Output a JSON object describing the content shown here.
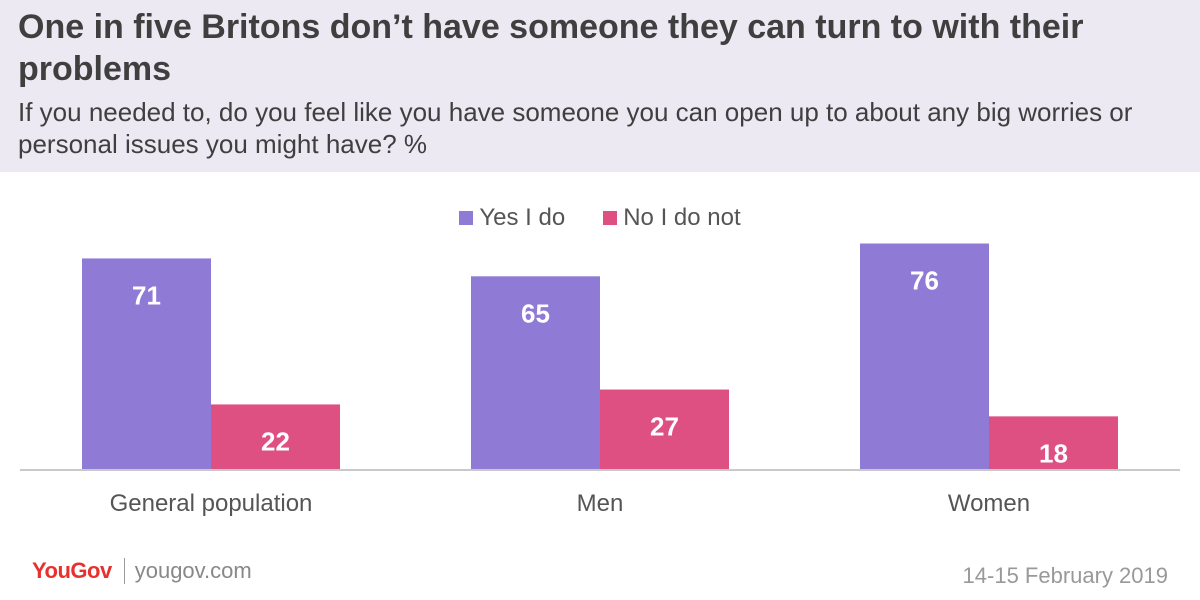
{
  "header": {
    "title": "One in five Britons don’t have someone they can turn to with their problems",
    "subtitle": "If you needed to, do you feel like you have someone you can open up to about any big worries or personal issues you might have? %"
  },
  "chart_data": {
    "type": "bar",
    "title": "One in five Britons don’t have someone they can turn to with their problems",
    "subtitle": "If you needed to, do you feel like you have someone you can open up to about any big worries or personal issues you might have? %",
    "categories": [
      "General population",
      "Men",
      "Women"
    ],
    "series": [
      {
        "name": "Yes I do",
        "values": [
          71,
          65,
          76
        ],
        "color": "#8f7ad6"
      },
      {
        "name": "No I do not",
        "values": [
          22,
          27,
          18
        ],
        "color": "#de4f82"
      }
    ],
    "ylim": [
      0,
      80
    ],
    "grid": false,
    "legend": "top-center",
    "xlabel": "",
    "ylabel": ""
  },
  "footer": {
    "brand": "YouGov",
    "site": "yougov.com",
    "date": "14-15 February 2019"
  }
}
